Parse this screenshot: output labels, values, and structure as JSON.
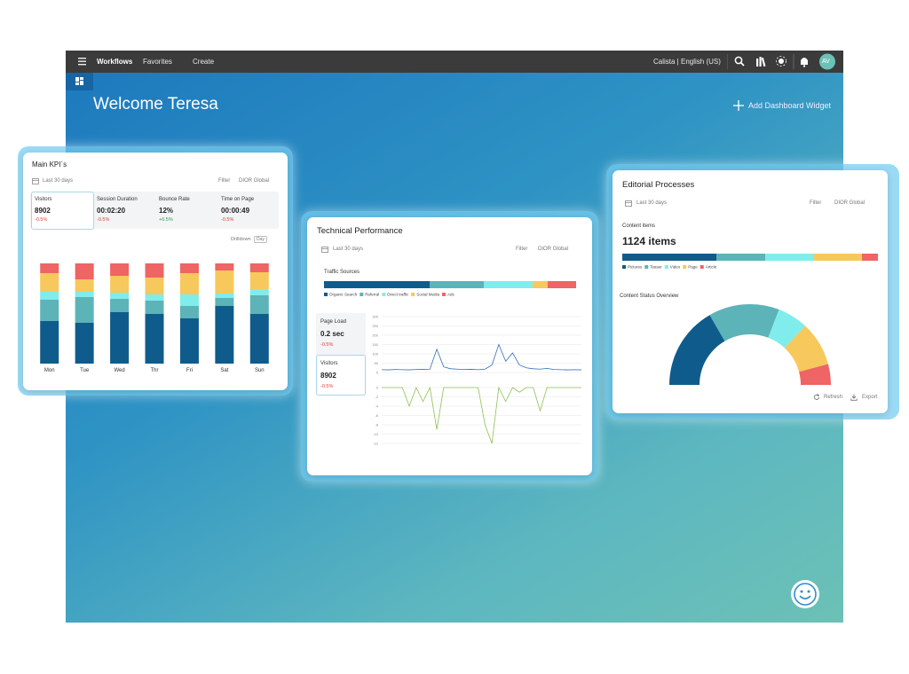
{
  "nav": {
    "items": [
      "Workflows",
      "Favorites",
      "Create"
    ],
    "language": "Calista | English (US)",
    "avatar": "AV"
  },
  "header": {
    "title": "Welcome Teresa",
    "action": "Add Dashboard Widget"
  },
  "kpi_card": {
    "title": "Main KPI´s",
    "period": "Last 30 days",
    "filter": "Filter",
    "scope": "DIOR Global",
    "metrics": [
      {
        "label": "Visitors",
        "value": "8902",
        "change": "-0.5%"
      },
      {
        "label": "Session Duration",
        "value": "00:02:20",
        "change": "-0.5%"
      },
      {
        "label": "Bounce Rate",
        "value": "12%",
        "change": "+6.5%"
      },
      {
        "label": "Time on Page",
        "value": "00:00:49",
        "change": "-0.5%"
      }
    ],
    "drilldown": "Drilldown",
    "granularity": "Day",
    "chart_data": {
      "type": "stacked_bar",
      "categories": [
        "Mon",
        "Tue",
        "Wed",
        "Thr",
        "Fri",
        "Sat",
        "Sun"
      ],
      "series": [
        {
          "color": "#0f5c8c",
          "values": [
            48,
            46,
            58,
            56,
            51,
            65,
            56
          ]
        },
        {
          "color": "#5cb3b8",
          "values": [
            24,
            29,
            15,
            15,
            14,
            9,
            21
          ]
        },
        {
          "color": "#80ecec",
          "values": [
            9,
            6,
            7,
            7,
            13,
            5,
            7
          ]
        },
        {
          "color": "#f7c85c",
          "values": [
            21,
            14,
            19,
            19,
            24,
            26,
            19
          ]
        },
        {
          "color": "#ef6464",
          "values": [
            11,
            18,
            14,
            16,
            11,
            8,
            10
          ]
        }
      ]
    }
  },
  "tech_card": {
    "title": "Technical Performance",
    "period": "Last 30 days",
    "filter": "Filter",
    "scope": "DIOR Global",
    "traffic": {
      "title": "Traffic Sources",
      "chart_data": {
        "type": "stacked_hbar",
        "series": [
          {
            "name": "Organic Search",
            "color": "#0f5c8c",
            "values": [
              119
            ]
          },
          {
            "name": "Referral",
            "color": "#5cb3b8",
            "values": [
              61
            ]
          },
          {
            "name": "Direct traffic",
            "color": "#80ecec",
            "values": [
              55
            ]
          },
          {
            "name": "Social Media",
            "color": "#f7c85c",
            "values": [
              17
            ]
          },
          {
            "name": "Ads",
            "color": "#ef6464",
            "values": [
              32
            ]
          }
        ]
      }
    },
    "metrics": [
      {
        "label": "Page Load",
        "value": "0.2 sec",
        "change": "-0.5%"
      },
      {
        "label": "Visitors",
        "value": "8902",
        "change": "-0.5%"
      }
    ],
    "load_chart": {
      "chart_data": {
        "type": "line",
        "categories": [
          null,
          null,
          null,
          null,
          null,
          null,
          null,
          null,
          null,
          null,
          null,
          null,
          null,
          null,
          null,
          null,
          null,
          null,
          null,
          null,
          null,
          null,
          null,
          null,
          null,
          null,
          null,
          null,
          null,
          null
        ],
        "ylim": [
          0,
          300
        ],
        "yticks": [
          0,
          50,
          100,
          150,
          200,
          250,
          300
        ],
        "grid": true,
        "series": [
          {
            "color": "#2f6fb6",
            "values": [
              15,
              14,
              16,
              15,
              14,
              16,
              17,
              18,
              125,
              30,
              20,
              18,
              16,
              17,
              15,
              18,
              40,
              150,
              60,
              105,
              40,
              25,
              20,
              18,
              22,
              16,
              15,
              14,
              15,
              14
            ]
          }
        ]
      }
    },
    "error_chart": {
      "chart_data": {
        "type": "line",
        "categories": [
          null,
          null,
          null,
          null,
          null,
          null,
          null,
          null,
          null,
          null,
          null,
          null,
          null,
          null,
          null,
          null,
          null,
          null,
          null,
          null,
          null,
          null,
          null,
          null,
          null,
          null,
          null,
          null,
          null,
          null
        ],
        "ylim": [
          -12,
          0
        ],
        "yticks": [
          0,
          -2,
          -4,
          -6,
          -8,
          -10,
          -12
        ],
        "grid": true,
        "series": [
          {
            "color": "#8cc152",
            "values": [
              0,
              0,
              0,
              0,
              -4,
              0,
              -3,
              0,
              -9,
              0,
              0,
              0,
              0,
              0,
              0,
              -8,
              -12,
              0,
              -3,
              0,
              -1,
              0,
              0,
              -5,
              0,
              0,
              0,
              0,
              0,
              0
            ]
          }
        ]
      }
    }
  },
  "editorial_card": {
    "title": "Editorial Processes",
    "period": "Last 30 days",
    "filter": "Filter",
    "scope": "DIOR Global",
    "content_label": "Content items",
    "content_total": "1124 items",
    "content_chart": {
      "chart_data": {
        "type": "stacked_hbar",
        "series": [
          {
            "name": "Pictures",
            "color": "#0f5c8c",
            "values": [
              106
            ]
          },
          {
            "name": "Teaser",
            "color": "#5cb3b8",
            "values": [
              55
            ]
          },
          {
            "name": "Video",
            "color": "#80ecec",
            "values": [
              54
            ]
          },
          {
            "name": "Page",
            "color": "#f7c85c",
            "values": [
              55
            ]
          },
          {
            "name": "Article",
            "color": "#ef6464",
            "values": [
              18
            ]
          }
        ]
      }
    },
    "status_title": "Content Status Overview",
    "status_chart": {
      "chart_data": {
        "type": "semi_donut",
        "colors": [
          "#0f5c8c",
          "#5cb3b8",
          "#80ecec",
          "#f7c85c",
          "#ef6464"
        ],
        "values": [
          60,
          51,
          22,
          32,
          15
        ]
      }
    },
    "actions": [
      "Refresh",
      "Export"
    ]
  }
}
